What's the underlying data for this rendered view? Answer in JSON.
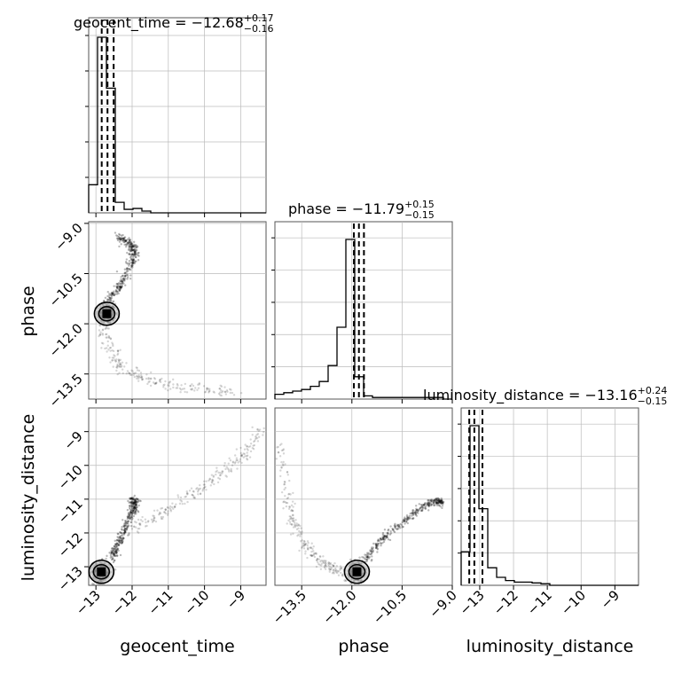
{
  "chart_data": {
    "type": "corner",
    "parameters": [
      "geocent_time",
      "phase",
      "luminosity_distance"
    ],
    "titles": [
      {
        "name": "geocent_time",
        "median": "−12.68",
        "plus": "+0.17",
        "minus": "−0.16",
        "prefix": "geocent_time = "
      },
      {
        "name": "phase",
        "median": "−11.79",
        "plus": "+0.15",
        "minus": "−0.15",
        "prefix": "phase = "
      },
      {
        "name": "luminosity_distance",
        "median": "−13.16",
        "plus": "+0.24",
        "minus": "−0.15",
        "prefix": "luminosity_distance = "
      }
    ],
    "axes": {
      "geocent_time": {
        "range": [
          -13.2,
          -8.3
        ],
        "ticks": [
          -13,
          -12,
          -11,
          -10,
          -9
        ],
        "tick_labels": [
          "−13",
          "−12",
          "−11",
          "−10",
          "−9"
        ]
      },
      "phase": {
        "range_x": [
          -14.3,
          -9.0
        ],
        "range_y": [
          -14.25,
          -8.95
        ],
        "ticks": [
          -13.5,
          -12.0,
          -10.5,
          -9.0
        ],
        "tick_labels_x": [
          "−13.5",
          "−12.0",
          "−10.5",
          "−9.0"
        ],
        "tick_labels_y": [
          "−9.0",
          "−10.5",
          "−12.0",
          "−13.5"
        ]
      },
      "luminosity_distance": {
        "range": [
          -13.55,
          -8.3
        ],
        "ticks": [
          -13,
          -12,
          -11,
          -10,
          -9
        ],
        "tick_labels": [
          "−13",
          "−12",
          "−11",
          "−10",
          "−9"
        ]
      }
    },
    "xlabels": [
      "geocent_time",
      "phase",
      "luminosity_distance"
    ],
    "ylabels": [
      "phase",
      "luminosity_distance"
    ],
    "histograms": [
      {
        "param": "geocent_time",
        "bin_edges": [
          -13.2,
          -12.955,
          -12.71,
          -12.465,
          -12.22,
          -11.975,
          -11.73,
          -11.485,
          -11.24,
          -10.995,
          -10.75,
          -10.505,
          -10.26,
          -10.015,
          -9.77,
          -9.525,
          -9.28,
          -9.035,
          -8.79,
          -8.545,
          -8.3
        ],
        "counts": [
          0.16,
          1.0,
          0.71,
          0.06,
          0.02,
          0.025,
          0.01,
          0.0,
          0.0,
          0.0,
          0.0,
          0.0,
          0.0,
          0.0,
          0.0,
          0.0,
          0.0,
          0.0,
          0.0,
          0.0
        ],
        "quantiles": [
          -12.84,
          -12.68,
          -12.51
        ]
      },
      {
        "param": "phase",
        "bin_edges": [
          -14.3,
          -14.035,
          -13.77,
          -13.505,
          -13.24,
          -12.975,
          -12.71,
          -12.445,
          -12.18,
          -11.915,
          -11.65,
          -11.385,
          -11.12,
          -10.855,
          -10.59,
          -10.325,
          -10.06,
          -9.795,
          -9.53,
          -9.265,
          -9.0
        ],
        "counts": [
          0.03,
          0.04,
          0.05,
          0.06,
          0.08,
          0.11,
          0.21,
          0.45,
          1.0,
          0.14,
          0.02,
          0.01,
          0.01,
          0.01,
          0.01,
          0.01,
          0.01,
          0.01,
          0.01,
          0.0
        ],
        "quantiles": [
          -11.94,
          -11.79,
          -11.64
        ]
      },
      {
        "param": "luminosity_distance",
        "bin_edges": [
          -13.55,
          -13.2875,
          -13.025,
          -12.7625,
          -12.5,
          -12.2375,
          -11.975,
          -11.7125,
          -11.45,
          -11.1875,
          -10.925,
          -10.6625,
          -10.4,
          -10.1375,
          -9.875,
          -9.6125,
          -9.35,
          -9.0875,
          -8.825,
          -8.5625,
          -8.3
        ],
        "counts": [
          0.21,
          1.0,
          0.48,
          0.11,
          0.05,
          0.03,
          0.02,
          0.02,
          0.015,
          0.01,
          0.0,
          0.0,
          0.0,
          0.0,
          0.0,
          0.0,
          0.0,
          0.0,
          0.0,
          0.0
        ],
        "quantiles": [
          -13.31,
          -13.16,
          -12.92
        ]
      }
    ],
    "scatter_panels": [
      {
        "x": "geocent_time",
        "y": "phase",
        "peak": [
          -12.7,
          -11.7
        ],
        "trend": [
          [
            -12.8,
            -11.4
          ],
          [
            -12.4,
            -11.0
          ],
          [
            -12.1,
            -10.4
          ],
          [
            -11.95,
            -9.9
          ],
          [
            -12.05,
            -9.6
          ],
          [
            -12.4,
            -9.4
          ]
        ],
        "tail": [
          [
            -12.8,
            -12.2
          ],
          [
            -12.5,
            -12.9
          ],
          [
            -12.2,
            -13.4
          ],
          [
            -11.5,
            -13.7
          ],
          [
            -10.5,
            -13.9
          ],
          [
            -9.0,
            -14.1
          ]
        ]
      },
      {
        "x": "geocent_time",
        "y": "luminosity_distance",
        "peak": [
          -12.85,
          -13.15
        ],
        "trend": [
          [
            -12.6,
            -12.8
          ],
          [
            -12.4,
            -12.4
          ],
          [
            -12.2,
            -11.9
          ],
          [
            -12.0,
            -11.4
          ],
          [
            -11.9,
            -11.1
          ],
          [
            -12.0,
            -11.0
          ]
        ],
        "tail": [
          [
            -12.0,
            -11.9
          ],
          [
            -11.0,
            -11.3
          ],
          [
            -10.0,
            -10.6
          ],
          [
            -9.0,
            -9.8
          ],
          [
            -8.5,
            -9.0
          ]
        ]
      },
      {
        "x": "phase",
        "y": "luminosity_distance",
        "peak": [
          -11.85,
          -13.15
        ],
        "trend": [
          [
            -11.6,
            -12.8
          ],
          [
            -11.2,
            -12.3
          ],
          [
            -10.6,
            -11.8
          ],
          [
            -10.0,
            -11.3
          ],
          [
            -9.5,
            -11.05
          ],
          [
            -9.3,
            -11.1
          ]
        ],
        "tail": [
          [
            -12.3,
            -13.2
          ],
          [
            -12.9,
            -12.9
          ],
          [
            -13.5,
            -12.3
          ],
          [
            -13.9,
            -11.2
          ],
          [
            -14.2,
            -9.3
          ]
        ]
      }
    ]
  }
}
